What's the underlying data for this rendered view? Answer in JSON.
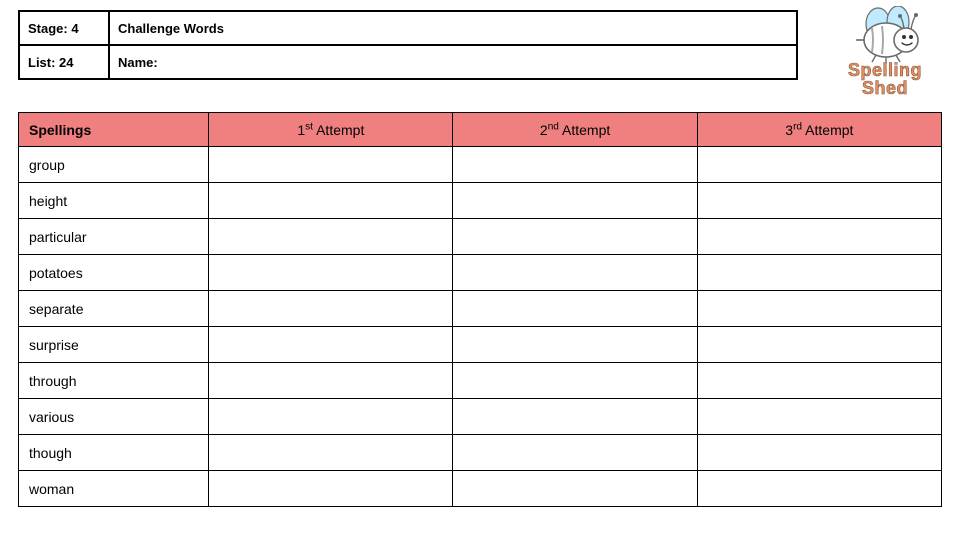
{
  "header": {
    "stage_label": "Stage: 4",
    "challenge_label": "Challenge Words",
    "list_label": "List: 24",
    "name_label": "Name:"
  },
  "logo": {
    "brand_top": "Spelling",
    "brand_bottom": "Shed",
    "text_fill": "#e28f64",
    "text_stroke": "#8a5a3a",
    "wing_color": "#bfeaff",
    "body_color": "#ffffff",
    "outline_color": "#6b6b6b",
    "stripe_color": "#a8a8a8"
  },
  "spelling_table": {
    "header_bg": "#f08080",
    "border_color": "#000000",
    "columns": {
      "spellings": "Spellings",
      "attempt1_pre": "1",
      "attempt1_sup": "st",
      "attempt1_post": " Attempt",
      "attempt2_pre": "2",
      "attempt2_sup": "nd",
      "attempt2_post": " Attempt",
      "attempt3_pre": "3",
      "attempt3_sup": "rd",
      "attempt3_post": " Attempt"
    },
    "rows": [
      {
        "word": "group",
        "a1": "",
        "a2": "",
        "a3": ""
      },
      {
        "word": "height",
        "a1": "",
        "a2": "",
        "a3": ""
      },
      {
        "word": "particular",
        "a1": "",
        "a2": "",
        "a3": ""
      },
      {
        "word": "potatoes",
        "a1": "",
        "a2": "",
        "a3": ""
      },
      {
        "word": "separate",
        "a1": "",
        "a2": "",
        "a3": ""
      },
      {
        "word": "surprise",
        "a1": "",
        "a2": "",
        "a3": ""
      },
      {
        "word": "through",
        "a1": "",
        "a2": "",
        "a3": ""
      },
      {
        "word": "various",
        "a1": "",
        "a2": "",
        "a3": ""
      },
      {
        "word": "though",
        "a1": "",
        "a2": "",
        "a3": ""
      },
      {
        "word": "woman",
        "a1": "",
        "a2": "",
        "a3": ""
      }
    ]
  }
}
